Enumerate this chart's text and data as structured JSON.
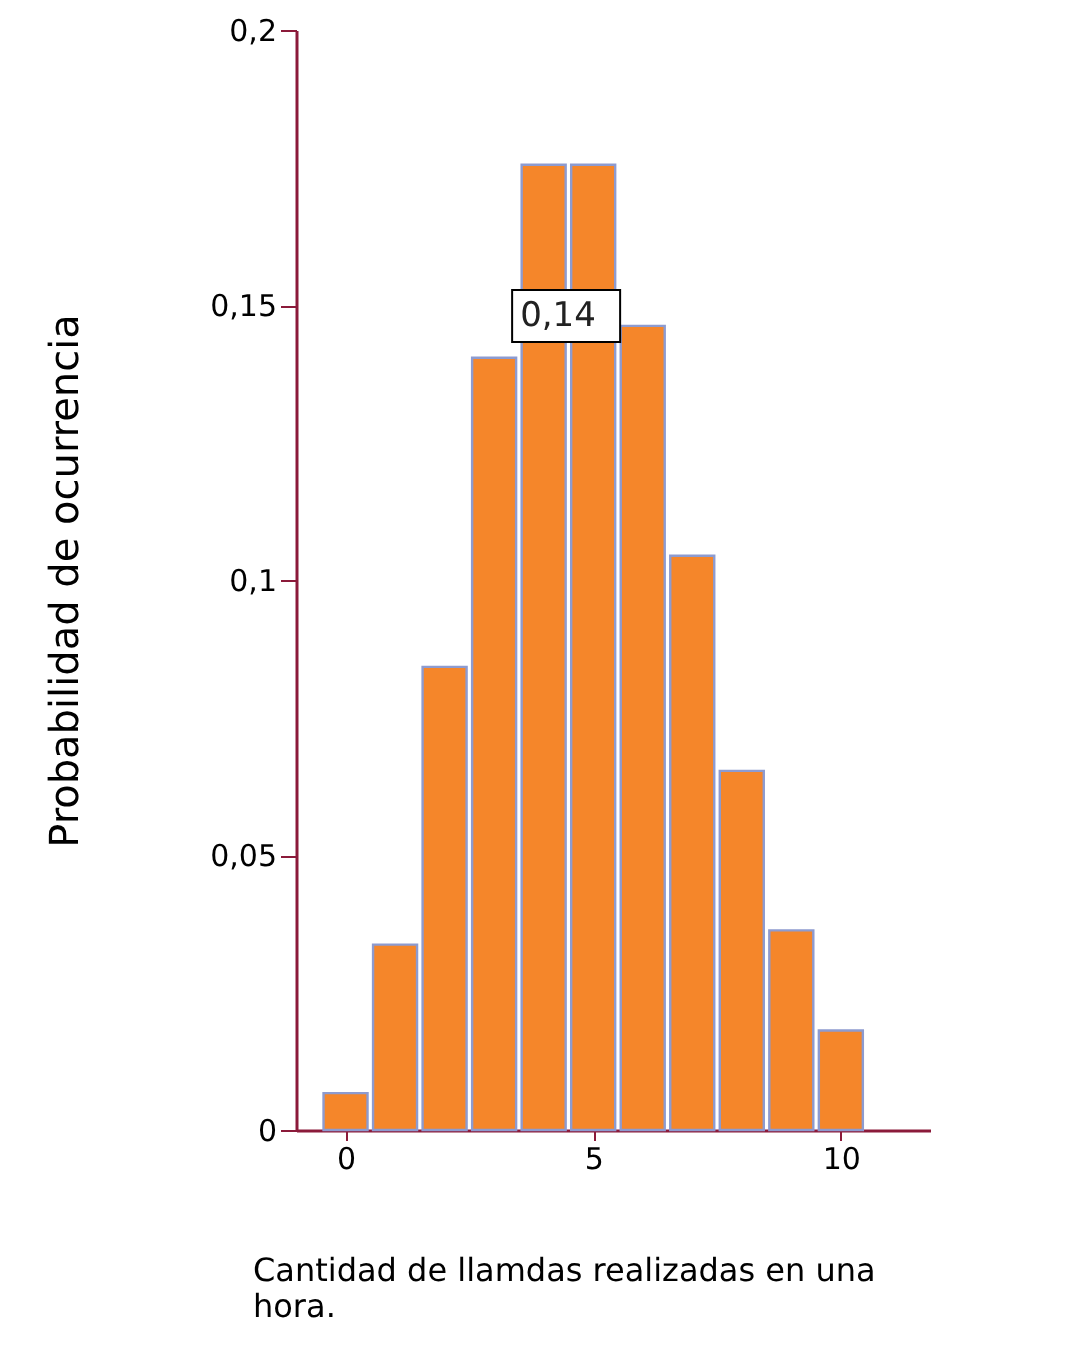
{
  "chart_data": {
    "type": "bar",
    "x": [
      0,
      1,
      2,
      3,
      4,
      5,
      6,
      7,
      8,
      9,
      10
    ],
    "values": [
      0.0067,
      0.0337,
      0.0842,
      0.1404,
      0.1755,
      0.1755,
      0.1462,
      0.1044,
      0.0653,
      0.0363,
      0.0181
    ],
    "color": "#f5862a",
    "xlabel": "Cantidad de llamdas realizadas en una hora.",
    "ylabel": "Probabilidad de ocurrencia",
    "xlim": [
      -1,
      11.8
    ],
    "xticks": [
      0,
      5,
      10
    ],
    "ylim": [
      0,
      0.2
    ],
    "yticks": [
      {
        "value": 0,
        "label": "0"
      },
      {
        "value": 0.05,
        "label": "0,05"
      },
      {
        "value": 0.1,
        "label": "0,1"
      },
      {
        "value": 0.15,
        "label": "0,15"
      },
      {
        "value": 0.2,
        "label": "0,2"
      }
    ],
    "annotations": [
      {
        "text": "0,14",
        "x": 3,
        "y": 0.14
      }
    ],
    "grid": false
  }
}
